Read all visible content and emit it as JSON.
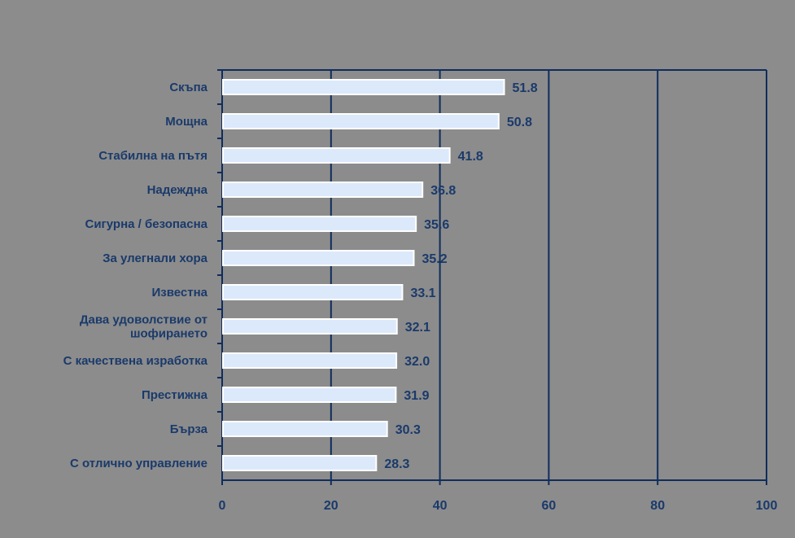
{
  "chart_data": {
    "type": "bar",
    "orientation": "horizontal",
    "categories": [
      "Скъпа",
      "Мощна",
      "Стабилна на пътя",
      "Надеждна",
      "Сигурна / безопасна",
      "За улегнали хора",
      "Известна",
      "Дава удоволствие от шофирането",
      "С качествена изработка",
      "Престижна",
      "Бърза",
      "С отлично управление"
    ],
    "category_lines": [
      [
        "Скъпа"
      ],
      [
        "Мощна"
      ],
      [
        "Стабилна на пътя"
      ],
      [
        "Надеждна"
      ],
      [
        "Сигурна / безопасна"
      ],
      [
        "За улегнали хора"
      ],
      [
        "Известна"
      ],
      [
        "Дава удоволствие от",
        "шофирането"
      ],
      [
        "С качествена изработка"
      ],
      [
        "Престижна"
      ],
      [
        "Бърза"
      ],
      [
        "С отлично управление"
      ]
    ],
    "values": [
      51.8,
      50.8,
      41.8,
      36.8,
      35.6,
      35.2,
      33.1,
      32.1,
      32.0,
      31.9,
      30.3,
      28.3
    ],
    "value_labels": [
      "51.8",
      "50.8",
      "41.8",
      "36.8",
      "35.6",
      "35.2",
      "33.1",
      "32.1",
      "32.0",
      "31.9",
      "30.3",
      "28.3"
    ],
    "xlim": [
      0,
      100
    ],
    "xticks": [
      0,
      20,
      40,
      60,
      80,
      100
    ],
    "xtick_labels": [
      "0",
      "20",
      "40",
      "60",
      "80",
      "100"
    ],
    "grid": true,
    "title": "",
    "xlabel": "",
    "ylabel": ""
  },
  "colors": {
    "background": "#8c8c8c",
    "bar_fill": "#dce9fb",
    "bar_stroke": "#ffffff",
    "grid": "#0f2d5c",
    "text": "#1a3a6b"
  }
}
